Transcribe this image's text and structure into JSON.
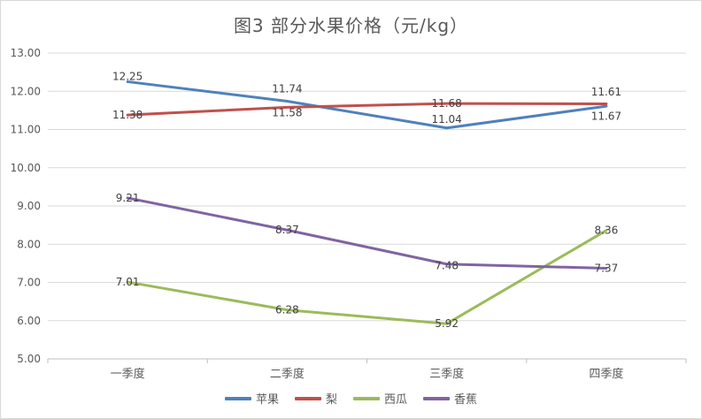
{
  "chart_data": {
    "type": "line",
    "title": "图3  部分水果价格（元/kg）",
    "categories": [
      "一季度",
      "二季度",
      "三季度",
      "四季度"
    ],
    "ylim": [
      5,
      13
    ],
    "yticks": [
      "5.00",
      "6.00",
      "7.00",
      "8.00",
      "9.00",
      "10.00",
      "11.00",
      "12.00",
      "13.00"
    ],
    "grid": "horizontal",
    "legend_position": "bottom",
    "series": [
      {
        "name": "苹果",
        "color": "#4f81bd",
        "values": [
          12.25,
          11.74,
          11.04,
          11.61
        ],
        "labels": [
          "12.25",
          "11.74",
          "11.04",
          "11.61"
        ]
      },
      {
        "name": "梨",
        "color": "#c0504d",
        "values": [
          11.38,
          11.58,
          11.68,
          11.67
        ],
        "labels": [
          "11.38",
          "11.58",
          "11.68",
          "11.67"
        ]
      },
      {
        "name": "西瓜",
        "color": "#9bbb59",
        "values": [
          7.01,
          6.28,
          5.92,
          8.36
        ],
        "labels": [
          "7.01",
          "6.28",
          "5.92",
          "8.36"
        ]
      },
      {
        "name": "香蕉",
        "color": "#8064a2",
        "values": [
          9.21,
          8.37,
          7.48,
          7.37
        ],
        "labels": [
          "9.21",
          "8.37",
          "7.48",
          "7.37"
        ]
      }
    ]
  }
}
